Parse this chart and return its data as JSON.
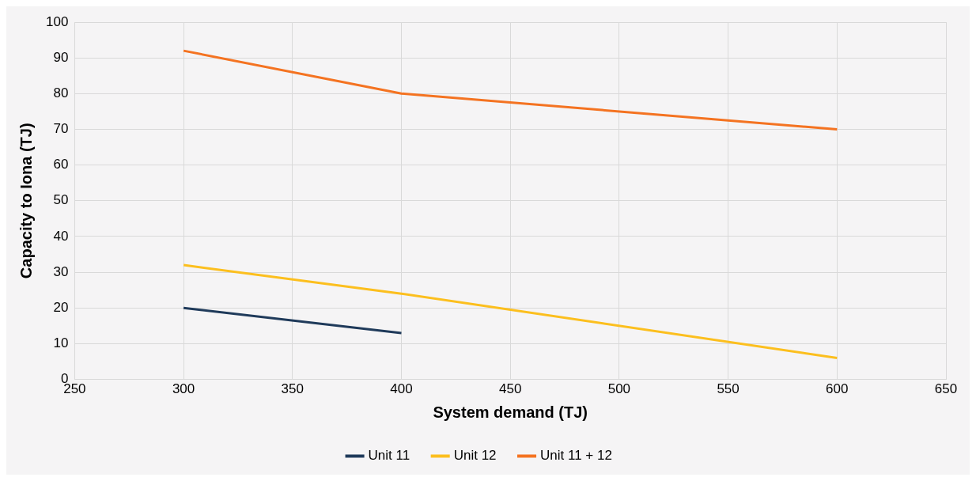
{
  "chart_data": {
    "type": "line",
    "xlabel": "System demand (TJ)",
    "ylabel": "Capacity to Iona (TJ)",
    "xlim": [
      250,
      650
    ],
    "xticks": [
      250,
      300,
      350,
      400,
      450,
      500,
      550,
      600,
      650
    ],
    "ylim": [
      0,
      100
    ],
    "yticks": [
      0,
      10,
      20,
      30,
      40,
      50,
      60,
      70,
      80,
      90,
      100
    ],
    "grid": true,
    "legend": "bottom",
    "marker": "none",
    "line_style": "solid",
    "series": [
      {
        "name": "Unit 11",
        "color": "#1f3a5a",
        "x": [
          300,
          400
        ],
        "values": [
          20,
          13
        ]
      },
      {
        "name": "Unit 12",
        "color": "#fcbf1e",
        "x": [
          300,
          400,
          600
        ],
        "values": [
          32,
          24,
          6
        ]
      },
      {
        "name": "Unit 11 + 12",
        "color": "#f47321",
        "x": [
          300,
          400,
          600
        ],
        "values": [
          92,
          80,
          70
        ]
      }
    ]
  }
}
